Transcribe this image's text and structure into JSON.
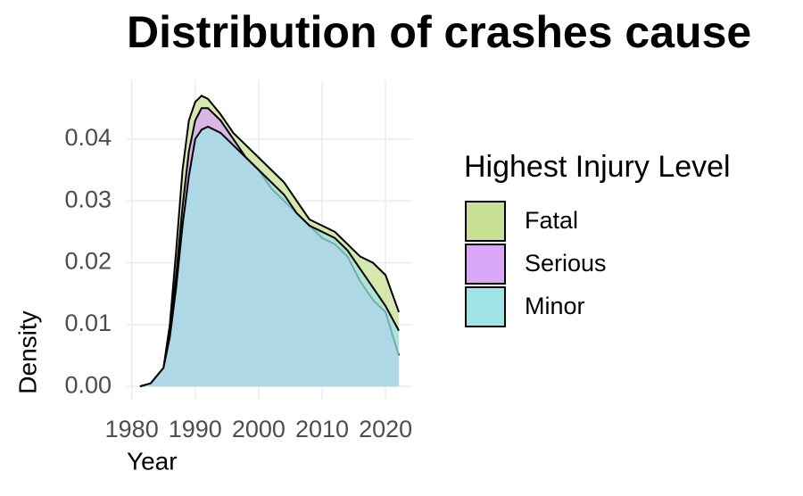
{
  "chart_data": {
    "type": "area",
    "title": "Distribution of crashes cause",
    "x_label": "Year",
    "y_label": "Density",
    "legend_title": "Highest Injury Level",
    "legend_position": "right",
    "grid": true,
    "x": [
      1981.3,
      1983,
      1985,
      1986,
      1987,
      1988,
      1989,
      1990,
      1991,
      1992,
      1994,
      1996,
      1998,
      2000,
      2002,
      2004,
      2006,
      2008,
      2010,
      2012,
      2014,
      2016,
      2018,
      2020,
      2022.1
    ],
    "series": [
      {
        "name": "Fatal",
        "color": "#c8df95",
        "values": [
          0,
          0.0005,
          0.003,
          0.01,
          0.022,
          0.035,
          0.043,
          0.046,
          0.047,
          0.0465,
          0.044,
          0.041,
          0.039,
          0.037,
          0.035,
          0.033,
          0.03,
          0.027,
          0.026,
          0.025,
          0.023,
          0.021,
          0.02,
          0.018,
          0.012
        ]
      },
      {
        "name": "Serious",
        "color": "#d9a6f8",
        "values": [
          0,
          0.0005,
          0.003,
          0.009,
          0.018,
          0.029,
          0.038,
          0.043,
          0.045,
          0.045,
          0.043,
          0.04,
          0.037,
          0.035,
          0.032,
          0.03,
          0.028,
          0.026,
          0.024,
          0.023,
          0.021,
          0.017,
          0.014,
          0.012,
          0.005
        ]
      },
      {
        "name": "Minor",
        "color": "#9fe3e6",
        "values": [
          0,
          0.0005,
          0.003,
          0.008,
          0.016,
          0.026,
          0.034,
          0.04,
          0.0415,
          0.042,
          0.041,
          0.039,
          0.037,
          0.035,
          0.033,
          0.031,
          0.028,
          0.026,
          0.025,
          0.024,
          0.022,
          0.019,
          0.016,
          0.013,
          0.009
        ]
      }
    ],
    "xlim": [
      1979.2,
      2024.2
    ],
    "xticks": [
      1980,
      1990,
      2000,
      2010,
      2020
    ],
    "ylim": [
      -0.002,
      0.0495
    ],
    "yticks": [
      {
        "value": 0,
        "label": "0.00"
      },
      {
        "value": 0.01,
        "label": "0.01"
      },
      {
        "value": 0.02,
        "label": "0.02"
      },
      {
        "value": 0.03,
        "label": "0.03"
      },
      {
        "value": 0.04,
        "label": "0.04"
      }
    ]
  }
}
